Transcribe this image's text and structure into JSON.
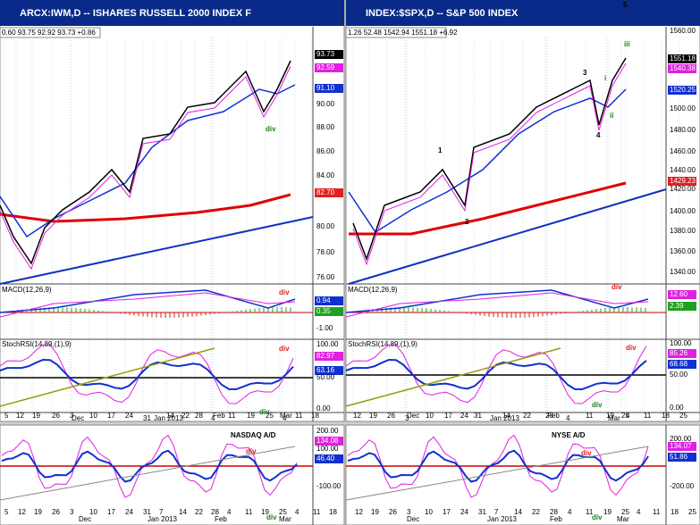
{
  "left": {
    "title": "ARCX:IWM,D -- ISHARES RUSSELL 2000 INDEX F",
    "quote": "0.60 93.75 92.92 93.73 +0.86",
    "price_labels": [
      "93.73",
      "92.59",
      "91.10",
      "90.00",
      "88.00",
      "86.00",
      "84.00",
      "82.70",
      "80.00",
      "78.00",
      "76.00"
    ],
    "macd_title": "MACD(12,26,9)",
    "macd_labels": [
      "0.94",
      "0.35",
      "-1.00"
    ],
    "stoch_title": "StochRSI(14,89,(1),9)",
    "stoch_labels": [
      "100.00",
      "82.97",
      "63.16",
      "50.00",
      "0.00"
    ],
    "x_labels": [
      "5",
      "12",
      "19",
      "26",
      "Dec",
      "3",
      "10",
      "17",
      "24",
      "31",
      "Jan 2013",
      "14",
      "22",
      "28",
      "4",
      "Feb",
      "11",
      "19",
      "25",
      "4",
      "Mar",
      "11",
      "18"
    ],
    "annotations": [
      "div",
      "div",
      "div",
      "div"
    ],
    "ad_title": "NASDAQ A/D",
    "ad_labels": [
      "200.00",
      "134.08",
      "100.00",
      "46.40",
      "-100.00"
    ],
    "ad_x_labels": [
      "5",
      "12",
      "19",
      "26",
      "3",
      "10",
      "17",
      "24",
      "31",
      "7",
      "14",
      "22",
      "28",
      "4",
      "11",
      "19",
      "25",
      "4",
      "11",
      "18"
    ],
    "ad_month_labels": [
      "Dec",
      "Jan 2013",
      "Feb",
      "Mar"
    ],
    "ad_annotations": [
      "div",
      "div"
    ]
  },
  "right": {
    "title": "INDEX:$SPX,D -- S&P 500 INDEX",
    "quote": "1.26 52.48 1542.94 1551.18 +6.92",
    "price_labels": [
      "1560.00",
      "1551.18",
      "1540.38",
      "1520.25",
      "1500.00",
      "1480.00",
      "1460.00",
      "1440.00",
      "1429.23",
      "1420.00",
      "1400.00",
      "1380.00",
      "1360.00",
      "1340.00"
    ],
    "macd_title": "MACD(12,26,9)",
    "macd_labels": [
      "12.60",
      "2.39"
    ],
    "stoch_title": "StochRSI(14,89,(1),9)",
    "stoch_labels": [
      "100.00",
      "85.26",
      "68.68",
      "50.00",
      "0.00"
    ],
    "x_labels": [
      "12",
      "19",
      "26",
      "Dec",
      "3",
      "10",
      "17",
      "24",
      "31",
      "Jan 2013",
      "14",
      "22",
      "28",
      "Feb",
      "4",
      "11",
      "19",
      "25",
      "4",
      "Mar",
      "11",
      "18",
      "25"
    ],
    "annotations": [
      "1",
      "2",
      "3",
      "4",
      "5",
      "i",
      "ii",
      "iii",
      "div",
      "div",
      "div"
    ],
    "ad_title": "NYSE A/D",
    "ad_labels": [
      "200.00",
      "134.07",
      "51.86",
      "-200.00"
    ],
    "ad_x_labels": [
      "12",
      "19",
      "26",
      "3",
      "10",
      "17",
      "24",
      "31",
      "7",
      "14",
      "22",
      "28",
      "4",
      "11",
      "19",
      "25",
      "4",
      "11",
      "18",
      "25"
    ],
    "ad_month_labels": [
      "Dec",
      "Jan 2013",
      "Feb",
      "Mar"
    ],
    "ad_annotations": [
      "div",
      "div"
    ]
  }
}
